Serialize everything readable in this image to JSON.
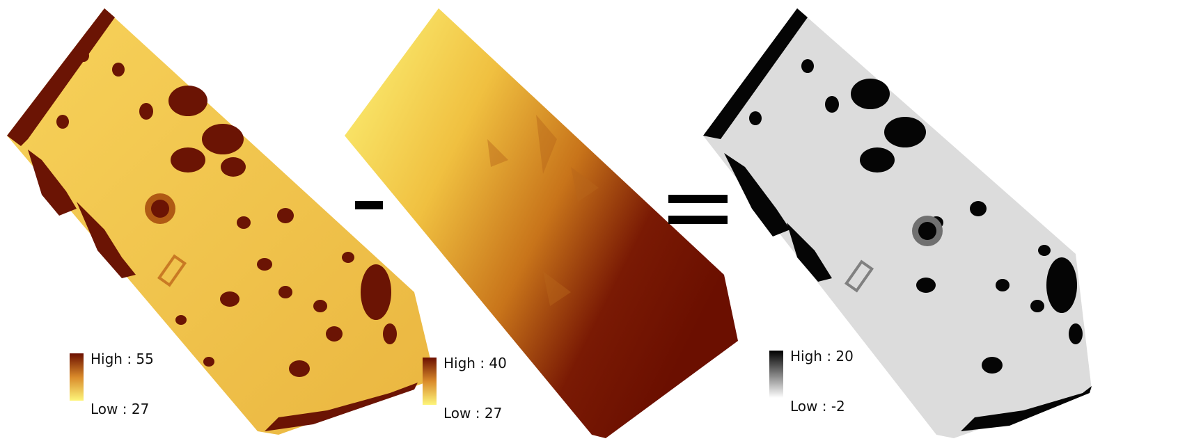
{
  "panels": [
    {
      "id": "dsm",
      "legend": {
        "high_label": "High : 55",
        "low_label": "Low : 27",
        "high": 55,
        "low": 27
      },
      "colors": {
        "high": "#6b0f00",
        "low": "#fdf57a"
      }
    },
    {
      "id": "dtm",
      "legend": {
        "high_label": "High : 40",
        "low_label": "Low : 27",
        "high": 40,
        "low": 27
      },
      "colors": {
        "high": "#6b0f00",
        "low": "#fdf57a"
      }
    },
    {
      "id": "chm",
      "legend": {
        "high_label": "High : 20",
        "low_label": "Low : -2",
        "high": 20,
        "low": -2
      },
      "colors": {
        "high": "#000000",
        "low": "#ffffff"
      }
    }
  ],
  "operators": [
    "minus",
    "equals"
  ]
}
